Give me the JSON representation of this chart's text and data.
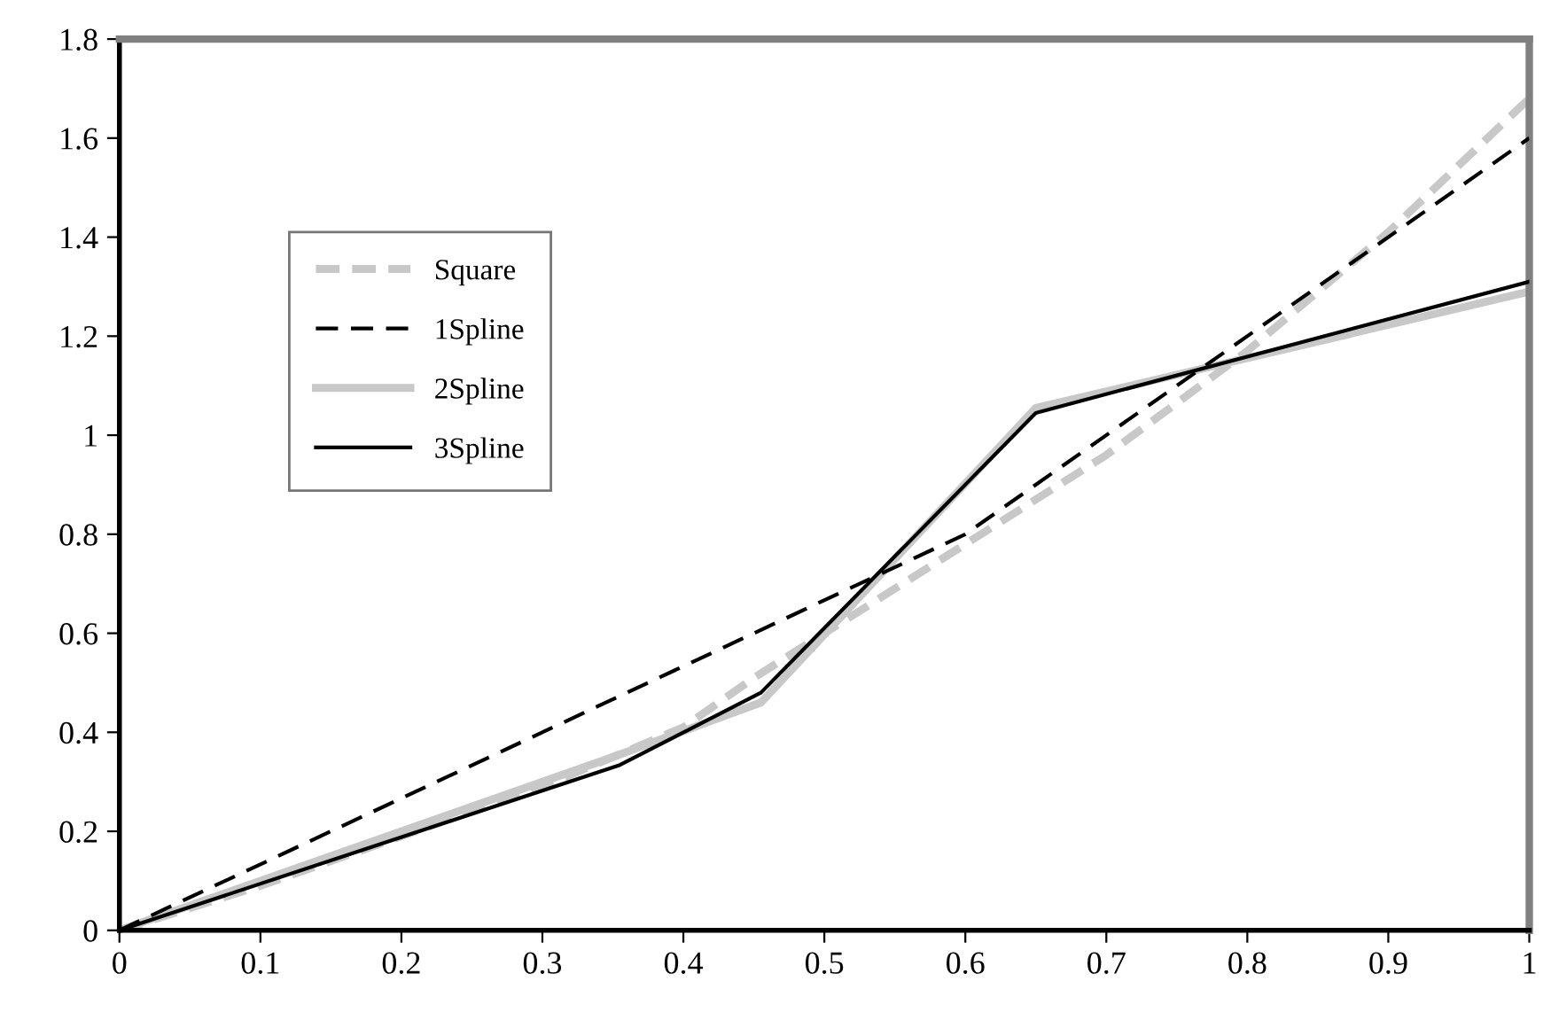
{
  "chart_data": {
    "type": "line",
    "xlim": [
      0,
      1
    ],
    "ylim": [
      0,
      1.8
    ],
    "xticks": [
      0,
      0.1,
      0.2,
      0.3,
      0.4,
      0.5,
      0.6,
      0.7,
      0.8,
      0.9,
      1
    ],
    "yticks": [
      0,
      0.2,
      0.4,
      0.6,
      0.8,
      1,
      1.2,
      1.4,
      1.6,
      1.8
    ],
    "grid": false,
    "legend": "top left",
    "marker": "none",
    "series": [
      {
        "name": "Square",
        "color": "#c8c8c8",
        "line_style": "dashed",
        "x": [
          0,
          0.1,
          0.2,
          0.3,
          0.4,
          0.45,
          0.5,
          0.6,
          0.7,
          0.8,
          0.9,
          1
        ],
        "values": [
          0,
          0.09,
          0.19,
          0.29,
          0.41,
          0.51,
          0.6,
          0.78,
          0.96,
          1.17,
          1.41,
          1.68
        ]
      },
      {
        "name": "1Spline",
        "color": "#000000",
        "line_style": "dashed",
        "x": [
          0,
          0.6,
          1
        ],
        "values": [
          0,
          0.8,
          1.6
        ]
      },
      {
        "name": "2Spline",
        "color": "#c8c8c8",
        "line_style": "solid",
        "x": [
          0,
          0.35,
          0.455,
          0.65,
          1
        ],
        "values": [
          0,
          0.35,
          0.46,
          1.055,
          1.29
        ]
      },
      {
        "name": "3Spline",
        "color": "#000000",
        "line_style": "solid",
        "x": [
          0,
          0.355,
          0.455,
          0.65,
          1
        ],
        "values": [
          0,
          0.334,
          0.48,
          1.045,
          1.31
        ]
      }
    ]
  }
}
